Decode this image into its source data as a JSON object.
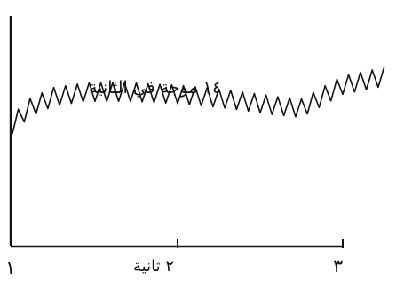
{
  "chart_data": {
    "type": "line",
    "title": "",
    "xlabel": "",
    "ylabel": "",
    "annotation": "١٤ موجة في الثانية",
    "x_ticks": [
      {
        "value": 1,
        "label": "١"
      },
      {
        "value": 2,
        "label": "٢ ثانية"
      },
      {
        "value": 3,
        "label": "٣"
      }
    ],
    "xlim": [
      1,
      3
    ],
    "ylim": [
      0,
      1
    ],
    "grid": false,
    "series": [
      {
        "waves_per_second": 14,
        "baseline": [
          [
            1.0,
            0.53
          ],
          [
            1.1,
            0.6
          ],
          [
            1.25,
            0.65
          ],
          [
            1.45,
            0.67
          ],
          [
            1.7,
            0.67
          ],
          [
            2.0,
            0.66
          ],
          [
            2.3,
            0.64
          ],
          [
            2.6,
            0.61
          ],
          [
            2.75,
            0.6
          ],
          [
            3.0,
            0.7
          ],
          [
            3.28,
            0.74
          ]
        ],
        "amplitude": 0.04
      }
    ]
  }
}
